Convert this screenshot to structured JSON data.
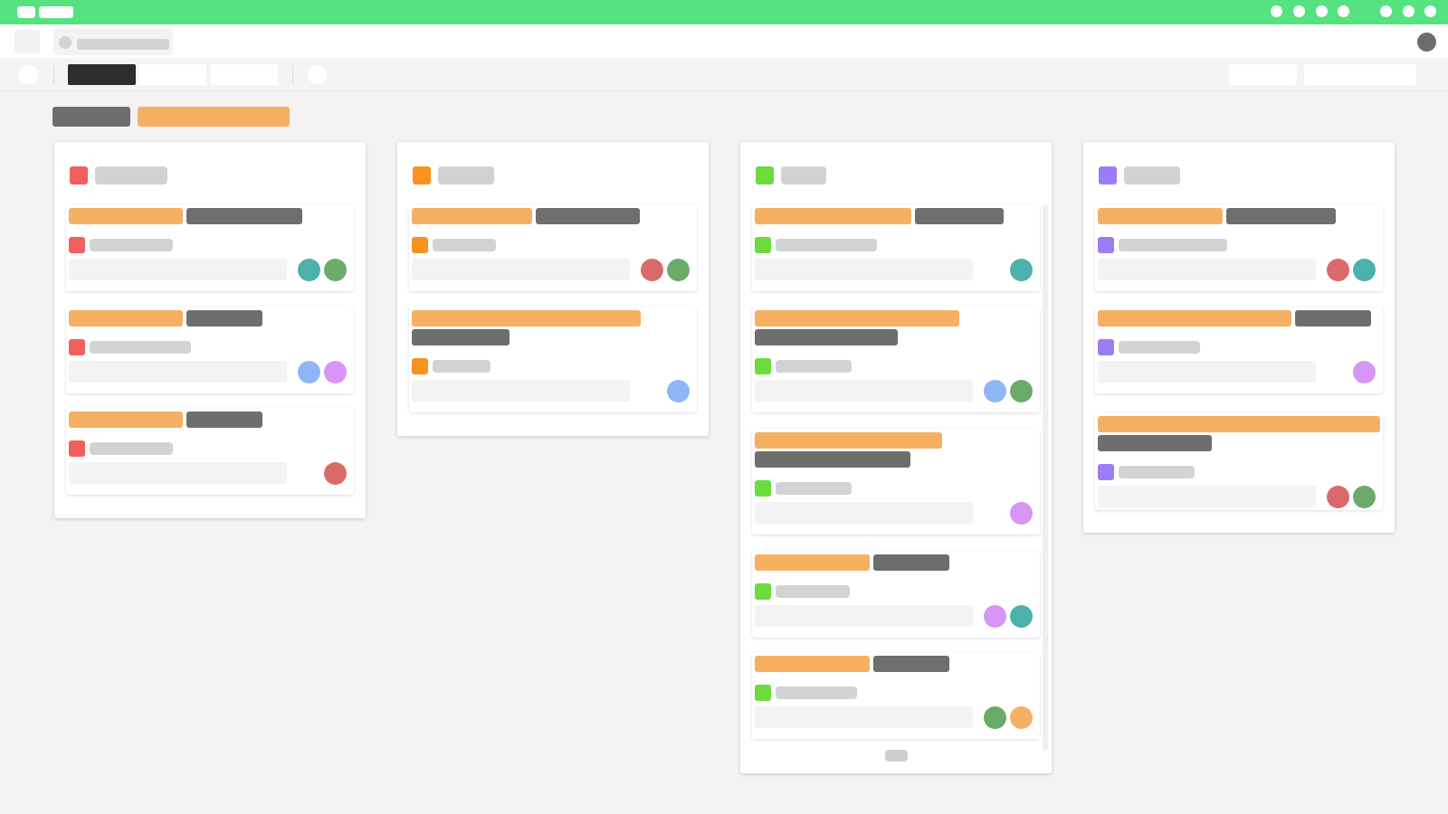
{
  "colors": {
    "accent_green": "#54e37f",
    "card_tag_orange": "#f5b062",
    "card_tag_gray": "#6e6e6e",
    "status_red": "#f25f5f",
    "status_orange": "#f7931e",
    "status_green": "#6bdb3e",
    "status_purple": "#9b7ef5"
  },
  "icons": {
    "top_left": [
      "app-menu-icon",
      "app-logo-icon"
    ],
    "top_right": [
      "window-dot-icon",
      "window-dot-icon",
      "window-dot-icon",
      "window-dot-icon",
      "window-dot-icon",
      "window-dot-icon",
      "window-dot-icon"
    ],
    "row2": [
      "sidebar-toggle-icon",
      "tab-favicon-icon",
      "user-avatar-icon"
    ],
    "toolbar": [
      "menu-circle-icon",
      "add-circle-icon"
    ]
  },
  "columns": [
    {
      "status_color": "#f25f5f",
      "cards": [
        {
          "avatars": [
            "#4cb1aa",
            "#6aab6a"
          ]
        },
        {
          "avatars": [
            "#8fb6f7",
            "#d795f5"
          ]
        },
        {
          "avatars": [
            "#d96a6a"
          ]
        }
      ]
    },
    {
      "status_color": "#f7931e",
      "cards": [
        {
          "avatars": [
            "#d96a6a",
            "#6aab6a"
          ]
        },
        {
          "avatars": [
            "#8fb6f7"
          ]
        }
      ]
    },
    {
      "status_color": "#6bdb3e",
      "cards": [
        {
          "avatars": [
            "#4cb1aa"
          ]
        },
        {
          "avatars": [
            "#8fb6f7",
            "#6aab6a"
          ]
        },
        {
          "avatars": [
            "#d795f5"
          ]
        },
        {
          "avatars": [
            "#d795f5",
            "#4cb1aa"
          ]
        },
        {
          "avatars": [
            "#6aab6a",
            "#f5b062"
          ]
        }
      ]
    },
    {
      "status_color": "#9b7ef5",
      "cards": [
        {
          "avatars": [
            "#d96a6a",
            "#4cb1aa"
          ]
        },
        {
          "avatars": [
            "#d795f5"
          ]
        },
        {
          "avatars": [
            "#d96a6a",
            "#6aab6a"
          ]
        }
      ]
    }
  ]
}
